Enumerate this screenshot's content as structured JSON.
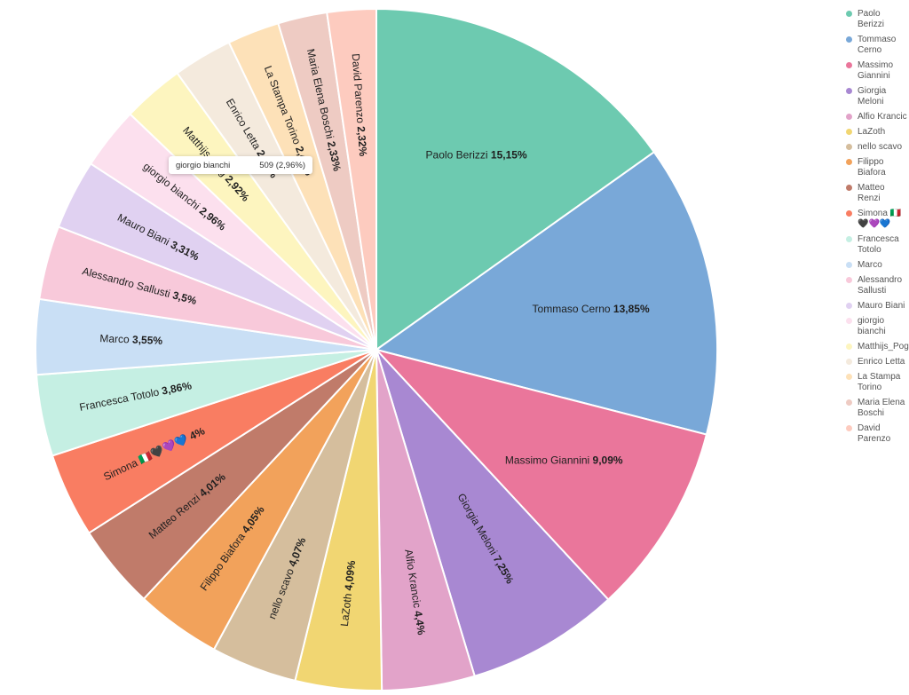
{
  "chart_data": {
    "type": "pie",
    "start_angle_deg": 0,
    "direction": "clockwise",
    "slices": [
      {
        "name": "Paolo Berizzi",
        "value": 15.15,
        "label_pct": "15,15%",
        "color": "#6dcab0"
      },
      {
        "name": "Tommaso Cerno",
        "value": 13.85,
        "label_pct": "13,85%",
        "color": "#79a8d8"
      },
      {
        "name": "Massimo Giannini",
        "value": 9.09,
        "label_pct": "9,09%",
        "color": "#ea769b"
      },
      {
        "name": "Giorgia Meloni",
        "value": 7.25,
        "label_pct": "7,25%",
        "color": "#a888d2"
      },
      {
        "name": "Alfio Krancic",
        "value": 4.4,
        "label_pct": "4,4%",
        "color": "#e2a3c9"
      },
      {
        "name": "LaZoth",
        "value": 4.09,
        "label_pct": "4,09%",
        "color": "#f1d672"
      },
      {
        "name": "nello scavo",
        "value": 4.07,
        "label_pct": "4,07%",
        "color": "#d5be9d"
      },
      {
        "name": "Filippo Biafora",
        "value": 4.05,
        "label_pct": "4,05%",
        "color": "#f2a25b"
      },
      {
        "name": "Matteo Renzi",
        "value": 4.01,
        "label_pct": "4,01%",
        "color": "#c07b6a"
      },
      {
        "name": "Simona 🇮🇹🖤💜💙",
        "legend_text": "Simona 🇮🇹🖤💜💙",
        "value": 4.0,
        "label_pct": "4%",
        "color": "#f97d62"
      },
      {
        "name": "Francesca Totolo",
        "value": 3.86,
        "label_pct": "3,86%",
        "color": "#c5efe3"
      },
      {
        "name": "Marco",
        "value": 3.55,
        "label_pct": "3,55%",
        "color": "#c9dff5"
      },
      {
        "name": "Alessandro Sallusti",
        "value": 3.5,
        "label_pct": "3,5%",
        "color": "#f8c9da"
      },
      {
        "name": "Mauro Biani",
        "value": 3.31,
        "label_pct": "3,31%",
        "color": "#e0d1f1"
      },
      {
        "name": "giorgio bianchi",
        "value": 2.96,
        "label_pct": "2,96%",
        "color": "#fce0ee"
      },
      {
        "name": "Matthijs_Pog",
        "value": 2.92,
        "label_pct": "2,92%",
        "color": "#fdf5bf"
      },
      {
        "name": "Enrico Letta",
        "value": 2.81,
        "label_pct": "2,81%",
        "color": "#f4eadd"
      },
      {
        "name": "La Stampa Torino",
        "value": 2.47,
        "label_pct": "2,47%",
        "color": "#fde1b8"
      },
      {
        "name": "Maria Elena Boschi",
        "value": 2.33,
        "label_pct": "2,33%",
        "color": "#eecbc3"
      },
      {
        "name": "David Parenzo",
        "value": 2.32,
        "label_pct": "2,32%",
        "color": "#fdcbbf"
      }
    ],
    "tooltip": {
      "name": "giorgio bianchi",
      "value_text": "509 (2,96%)"
    }
  }
}
